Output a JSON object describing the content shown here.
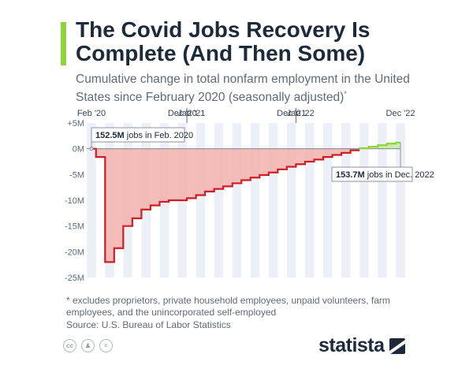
{
  "header": {
    "title": "The Covid Jobs Recovery Is Complete (And Then Some)",
    "subtitle": "Cumulative change in total nonfarm employment in the United States since February 2020 (seasonally adjusted)",
    "subtitle_marker": "*"
  },
  "colors": {
    "accent": "#8ed43c",
    "negative_line": "#cc1f25",
    "negative_fill": "#f3b1ad",
    "positive_line": "#8ed43c",
    "positive_fill": "#c8eba0",
    "column_band": "#edf0f6",
    "title": "#1d2a3a",
    "text": "#5f6b78"
  },
  "chart_data": {
    "type": "area",
    "step": true,
    "ylabel": "",
    "ylim": [
      -25,
      5
    ],
    "yticks": [
      5,
      0,
      -5,
      -10,
      -15,
      -20,
      -25
    ],
    "ytick_labels": [
      "+5M",
      "0M",
      "-5M",
      "-10M",
      "-15M",
      "-20M",
      "-25M"
    ],
    "x_top_labels": [
      {
        "index": 0,
        "text": "Feb '20"
      },
      {
        "index": 10,
        "text": "Dec '20"
      },
      {
        "index": 11,
        "text": "Jan '21"
      },
      {
        "index": 22,
        "text": "Dec '21"
      },
      {
        "index": 23,
        "text": "Jan '22"
      },
      {
        "index": 34,
        "text": "Dec '22"
      }
    ],
    "x": [
      "Feb 2020",
      "Mar 2020",
      "Apr 2020",
      "May 2020",
      "Jun 2020",
      "Jul 2020",
      "Aug 2020",
      "Sep 2020",
      "Oct 2020",
      "Nov 2020",
      "Dec 2020",
      "Jan 2021",
      "Feb 2021",
      "Mar 2021",
      "Apr 2021",
      "May 2021",
      "Jun 2021",
      "Jul 2021",
      "Aug 2021",
      "Sep 2021",
      "Oct 2021",
      "Nov 2021",
      "Dec 2021",
      "Jan 2022",
      "Feb 2022",
      "Mar 2022",
      "Apr 2022",
      "May 2022",
      "Jun 2022",
      "Jul 2022",
      "Aug 2022",
      "Sep 2022",
      "Oct 2022",
      "Nov 2022",
      "Dec 2022"
    ],
    "values": [
      0,
      -1.6,
      -22.0,
      -19.3,
      -15.0,
      -13.5,
      -11.8,
      -11.0,
      -10.3,
      -10.0,
      -10.0,
      -9.6,
      -9.0,
      -8.3,
      -7.8,
      -7.3,
      -6.7,
      -6.1,
      -5.6,
      -5.1,
      -4.6,
      -4.0,
      -3.5,
      -3.0,
      -2.5,
      -2.1,
      -1.6,
      -1.2,
      -0.8,
      -0.3,
      0.1,
      0.4,
      0.7,
      1.0,
      1.2
    ],
    "annotations": [
      {
        "index": 0,
        "bold": "152.5M",
        "text": " jobs in Feb. 2020"
      },
      {
        "index": 34,
        "bold": "153.7M",
        "text": " jobs in Dec. 2022"
      }
    ]
  },
  "footer": {
    "footnote": "* excludes proprietors, private household employees, unpaid volunteers, farm employees, and the unincorporated self-employed",
    "source": "Source: U.S. Bureau of Labor Statistics",
    "brand": "statista",
    "license_icons": [
      "cc-icon",
      "person-icon",
      "equals-icon"
    ]
  }
}
